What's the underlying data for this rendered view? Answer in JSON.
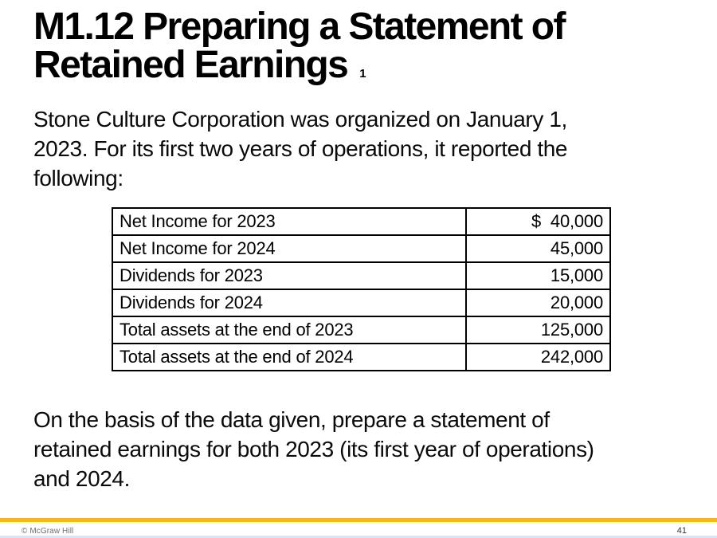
{
  "slide": {
    "title": {
      "line1": "M1.12 Preparing a Statement of",
      "line2": "Retained Earnings",
      "footnote": "1"
    },
    "intro_lines": {
      "0": "Stone Culture Corporation was organized on January 1,",
      "1": "2023. For its first two years of operations, it reported the",
      "2": "following:"
    },
    "table": {
      "rows": [
        {
          "label": "Net Income for 2023",
          "value": "$  40,000"
        },
        {
          "label": "Net Income for 2024",
          "value": "45,000"
        },
        {
          "label": "Dividends for 2023",
          "value": "15,000"
        },
        {
          "label": "Dividends for 2024",
          "value": "20,000"
        },
        {
          "label": "Total assets at the end of 2023",
          "value": "125,000"
        },
        {
          "label": "Total assets at the end of 2024",
          "value": "242,000"
        }
      ]
    },
    "instruction_lines": {
      "0": "On the basis of the data given, prepare a statement of",
      "1": "retained earnings for both 2023 (its first year of operations)",
      "2": "and 2024."
    },
    "footer": {
      "copyright": "© McGraw Hill",
      "page_number": "41"
    },
    "colors": {
      "accent_bar": "#FCB514",
      "bottom_edge_line": "#D9E5F2",
      "footer_text": "#6F6F6F",
      "body_text": "#000000"
    }
  }
}
